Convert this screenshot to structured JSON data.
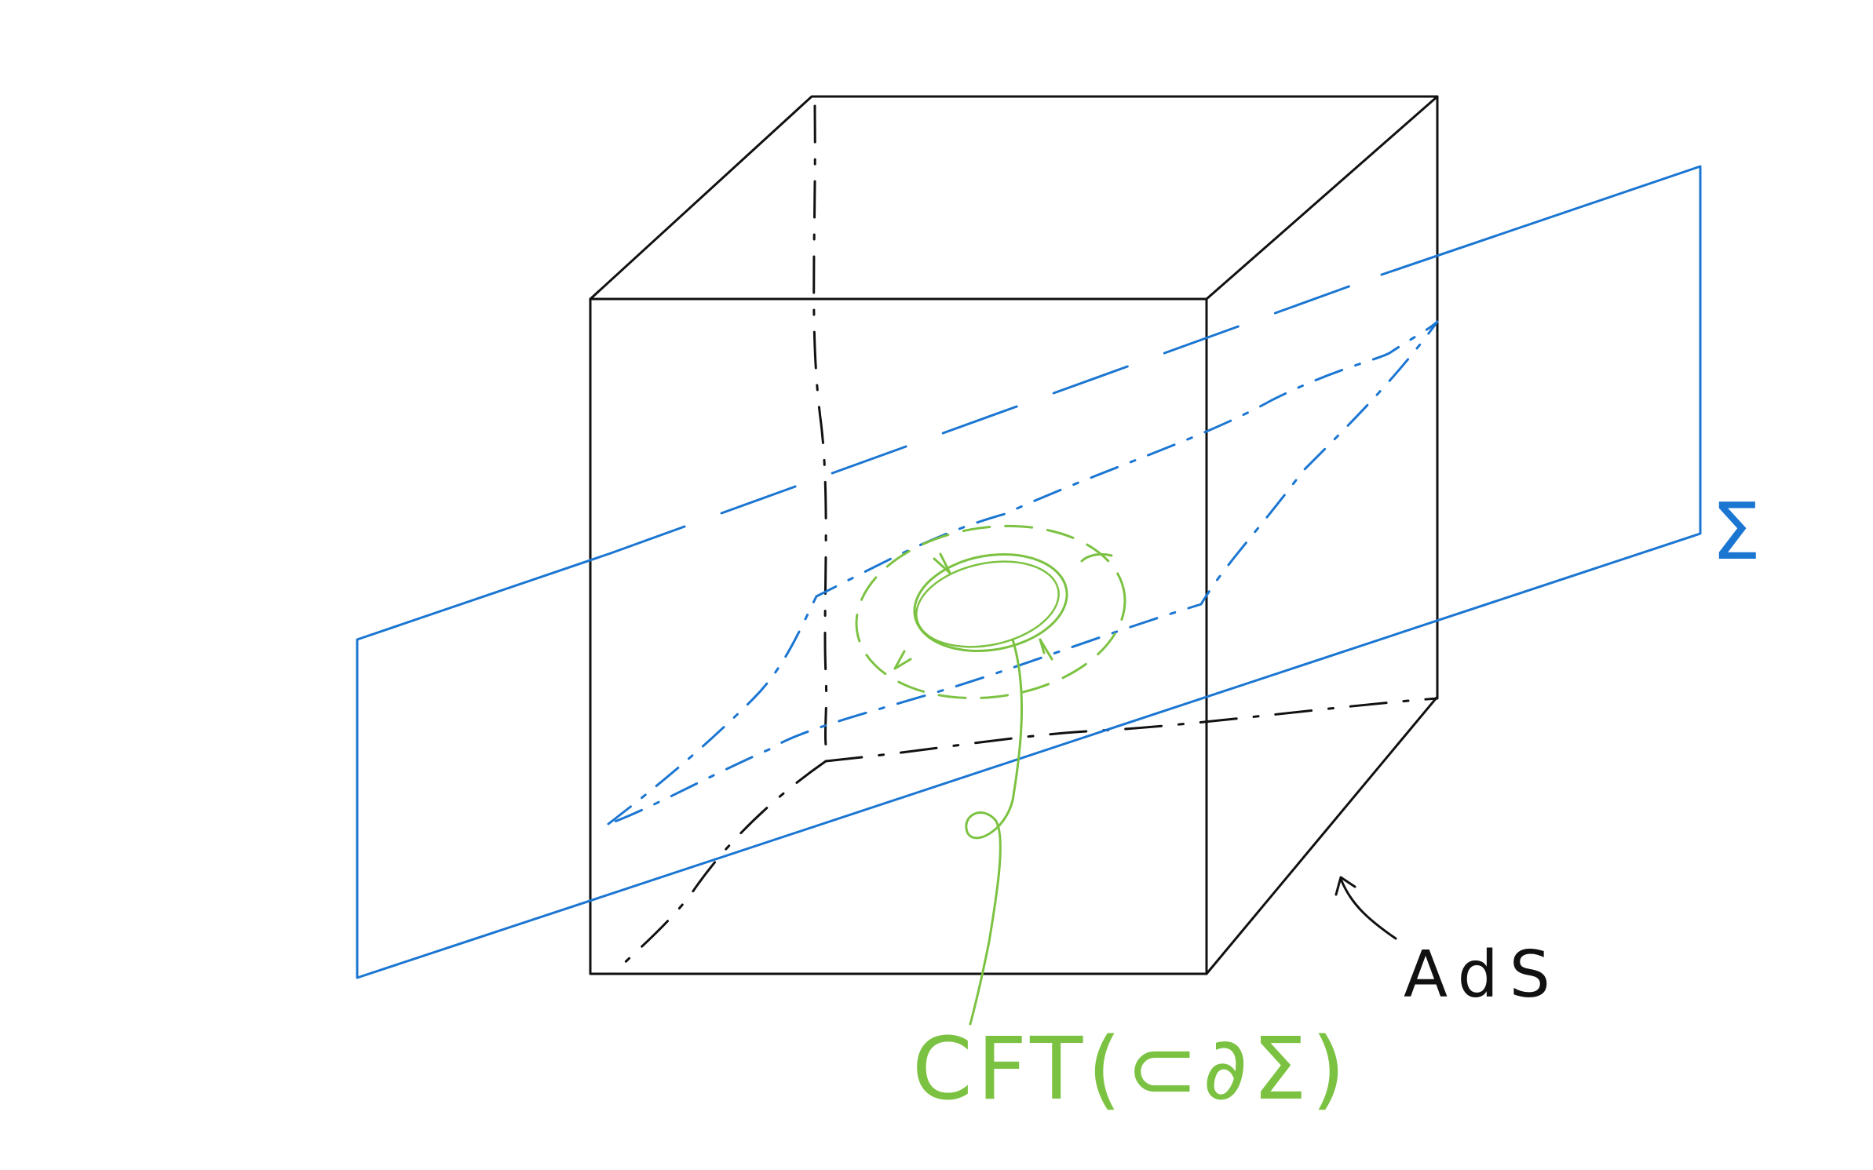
{
  "labels": {
    "sigma": "Σ",
    "ads": "AdS",
    "cft": "CFT(⊂∂Σ)"
  },
  "colors": {
    "cube": "#111111",
    "plane": "#1b76d2",
    "cft": "#7cc242",
    "background": "#ffffff"
  }
}
